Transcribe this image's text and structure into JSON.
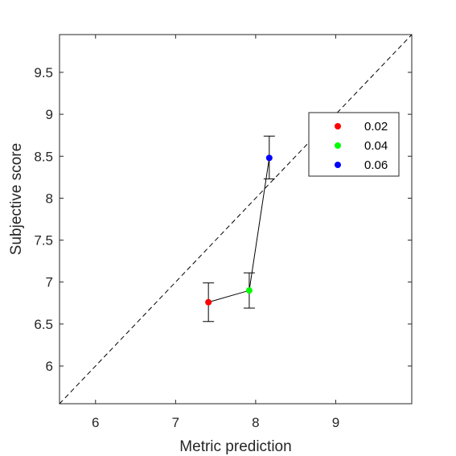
{
  "chart_data": {
    "type": "scatter",
    "title": "",
    "xlabel": "Metric prediction",
    "ylabel": "Subjective score",
    "xlim": [
      5.55,
      9.95
    ],
    "ylim": [
      5.55,
      9.95
    ],
    "x_ticks": [
      6,
      7,
      8,
      9
    ],
    "y_ticks": [
      6,
      6.5,
      7,
      7.5,
      8,
      8.5,
      9,
      9.5
    ],
    "x_tick_labels": [
      "6",
      "7",
      "8",
      "9"
    ],
    "y_tick_labels": [
      "6",
      "6.5",
      "7",
      "7.5",
      "8",
      "8.5",
      "9",
      "9.5"
    ],
    "grid": false,
    "legend_position": "top-right",
    "reference_line": {
      "style": "dashed",
      "from": [
        5.55,
        5.55
      ],
      "to": [
        9.95,
        9.95
      ],
      "color": "#000000"
    },
    "connect_points": true,
    "series": [
      {
        "name": "0.02",
        "color": "#ff0000",
        "x": 7.41,
        "y": 6.76,
        "err_low": 6.53,
        "err_high": 6.99
      },
      {
        "name": "0.04",
        "color": "#00ff00",
        "x": 7.92,
        "y": 6.9,
        "err_low": 6.69,
        "err_high": 7.11
      },
      {
        "name": "0.06",
        "color": "#0000ff",
        "x": 8.17,
        "y": 8.48,
        "err_low": 8.23,
        "err_high": 8.74
      }
    ]
  }
}
